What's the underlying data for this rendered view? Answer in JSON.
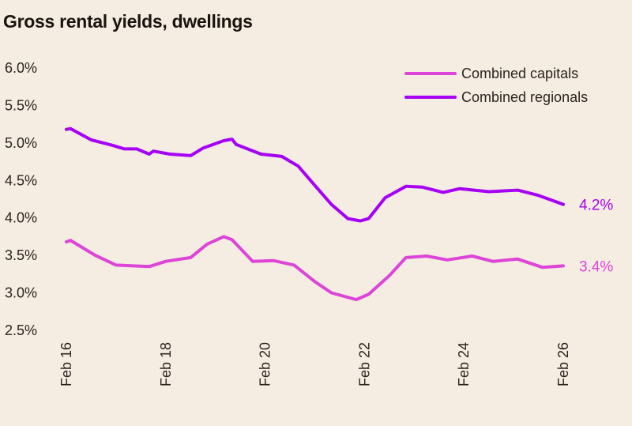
{
  "chart_data": {
    "type": "line",
    "title": "Gross rental yields, dwellings",
    "xlabel": "",
    "ylabel": "",
    "ylim": [
      2.5,
      6.0
    ],
    "yticks": [
      "2.5%",
      "3.0%",
      "3.5%",
      "4.0%",
      "4.5%",
      "5.0%",
      "5.5%",
      "6.0%"
    ],
    "xlim": [
      "2016-02",
      "2026-02"
    ],
    "xticks": [
      {
        "date": "2016-02",
        "label": "Feb 16"
      },
      {
        "date": "2018-02",
        "label": "Feb 18"
      },
      {
        "date": "2020-02",
        "label": "Feb 20"
      },
      {
        "date": "2022-02",
        "label": "Feb 22"
      },
      {
        "date": "2024-02",
        "label": "Feb 24"
      },
      {
        "date": "2026-02",
        "label": "Feb 26"
      }
    ],
    "grid": false,
    "legend": "top-right",
    "series": [
      {
        "name": "Combined capitals",
        "color": "#DD44D8",
        "end_label": "3.4%",
        "points": [
          [
            "2016-02",
            3.67
          ],
          [
            "2016-03",
            3.69
          ],
          [
            "2016-09",
            3.49
          ],
          [
            "2017-02",
            3.36
          ],
          [
            "2017-10",
            3.34
          ],
          [
            "2018-02",
            3.41
          ],
          [
            "2018-08",
            3.46
          ],
          [
            "2018-12",
            3.64
          ],
          [
            "2019-04",
            3.74
          ],
          [
            "2019-06",
            3.7
          ],
          [
            "2019-11",
            3.41
          ],
          [
            "2020-04",
            3.42
          ],
          [
            "2020-09",
            3.36
          ],
          [
            "2021-02",
            3.14
          ],
          [
            "2021-06",
            2.99
          ],
          [
            "2021-12",
            2.9
          ],
          [
            "2022-03",
            2.97
          ],
          [
            "2022-08",
            3.22
          ],
          [
            "2022-12",
            3.46
          ],
          [
            "2023-05",
            3.48
          ],
          [
            "2023-10",
            3.43
          ],
          [
            "2024-04",
            3.48
          ],
          [
            "2024-09",
            3.41
          ],
          [
            "2025-03",
            3.44
          ],
          [
            "2025-09",
            3.33
          ],
          [
            "2026-02",
            3.35
          ]
        ]
      },
      {
        "name": "Combined regionals",
        "color": "#A600F5",
        "end_label": "4.2%",
        "points": [
          [
            "2016-02",
            5.17
          ],
          [
            "2016-03",
            5.18
          ],
          [
            "2016-08",
            5.03
          ],
          [
            "2017-01",
            4.96
          ],
          [
            "2017-04",
            4.91
          ],
          [
            "2017-07",
            4.91
          ],
          [
            "2017-10",
            4.84
          ],
          [
            "2017-11",
            4.88
          ],
          [
            "2018-03",
            4.84
          ],
          [
            "2018-08",
            4.82
          ],
          [
            "2018-11",
            4.92
          ],
          [
            "2019-04",
            5.02
          ],
          [
            "2019-06",
            5.04
          ],
          [
            "2019-07",
            4.97
          ],
          [
            "2020-01",
            4.84
          ],
          [
            "2020-06",
            4.81
          ],
          [
            "2020-10",
            4.68
          ],
          [
            "2021-03",
            4.36
          ],
          [
            "2021-06",
            4.17
          ],
          [
            "2021-10",
            3.98
          ],
          [
            "2022-01",
            3.95
          ],
          [
            "2022-03",
            3.98
          ],
          [
            "2022-07",
            4.26
          ],
          [
            "2022-12",
            4.41
          ],
          [
            "2023-04",
            4.4
          ],
          [
            "2023-09",
            4.33
          ],
          [
            "2024-01",
            4.38
          ],
          [
            "2024-08",
            4.34
          ],
          [
            "2025-03",
            4.36
          ],
          [
            "2025-08",
            4.29
          ],
          [
            "2026-02",
            4.17
          ]
        ]
      }
    ]
  }
}
